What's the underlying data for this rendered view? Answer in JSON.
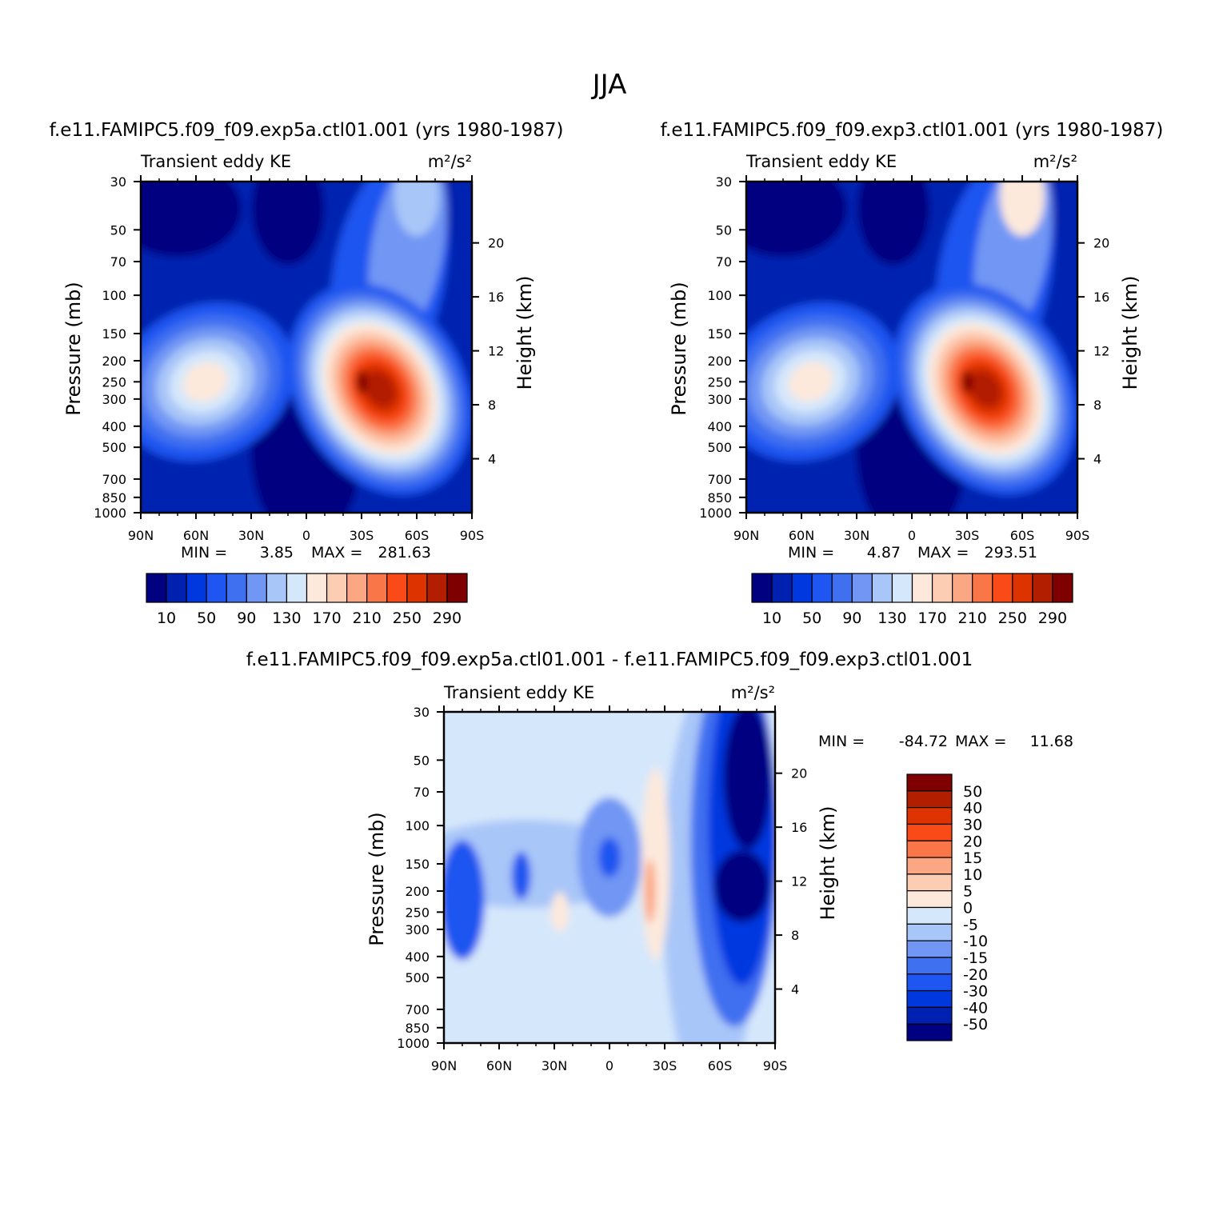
{
  "title": "JJA",
  "colors": {
    "abs": [
      "#000080",
      "#0020b0",
      "#0038e0",
      "#1f55f0",
      "#3f70f0",
      "#7196f4",
      "#a9c6f8",
      "#d5e7fb",
      "#fde9dc",
      "#fcccb3",
      "#fca784",
      "#f97648",
      "#f94a18",
      "#dd3300",
      "#b21e00",
      "#7f0000"
    ],
    "diff": [
      "#000080",
      "#0020b0",
      "#0038e0",
      "#1f55f0",
      "#3f70f0",
      "#7196f4",
      "#a9c6f8",
      "#d5e7fb",
      "#fde9dc",
      "#fcccb3",
      "#fca784",
      "#f97648",
      "#f94a18",
      "#dd3300",
      "#b21e00",
      "#7f0000"
    ]
  },
  "panels": [
    {
      "case_title": "f.e11.FAMIPC5.f09_f09.exp5a.ctl01.001 (yrs 1980-1987)",
      "variable": "Transient eddy KE",
      "units": "m²/s²",
      "min_label": "MIN =",
      "min_value": "3.85",
      "max_label": "MAX =",
      "max_value": "281.63"
    },
    {
      "case_title": "f.e11.FAMIPC5.f09_f09.exp3.ctl01.001 (yrs 1980-1987)",
      "variable": "Transient eddy KE",
      "units": "m²/s²",
      "min_label": "MIN =",
      "min_value": "4.87",
      "max_label": "MAX =",
      "max_value": "293.51"
    },
    {
      "case_title": "f.e11.FAMIPC5.f09_f09.exp5a.ctl01.001 - f.e11.FAMIPC5.f09_f09.exp3.ctl01.001",
      "variable": "Transient eddy KE",
      "units": "m²/s²",
      "min_label": "MIN =",
      "min_value": "-84.72",
      "max_label": "MAX =",
      "max_value": "11.68"
    }
  ],
  "axes": {
    "ylabel": "Pressure (mb)",
    "y2label": "Height (km)",
    "pressure_ticks": [
      "30",
      "50",
      "70",
      "100",
      "150",
      "200",
      "250",
      "300",
      "400",
      "500",
      "700",
      "850",
      "1000"
    ],
    "height_ticks": [
      "20",
      "16",
      "12",
      "8",
      "4"
    ],
    "lat_ticks": [
      "90N",
      "60N",
      "30N",
      "0",
      "30S",
      "60S",
      "90S"
    ]
  },
  "colorbar_abs_labels": [
    "10",
    "50",
    "90",
    "130",
    "170",
    "210",
    "250",
    "290"
  ],
  "colorbar_diff_labels": [
    "50",
    "40",
    "30",
    "20",
    "15",
    "10",
    "5",
    "0",
    "-5",
    "-10",
    "-15",
    "-20",
    "-30",
    "-40",
    "-50"
  ],
  "chart_data": [
    {
      "type": "heatmap",
      "title": "f.e11.FAMIPC5.f09_f09.exp5a.ctl01.001 (yrs 1980-1987)",
      "xlabel": "",
      "ylabel": "Pressure (mb)",
      "x": [
        "90N",
        "60N",
        "30N",
        "0",
        "30S",
        "60S",
        "90S"
      ],
      "ylim": [
        1000,
        30
      ],
      "y_scale": "log",
      "min": 3.85,
      "max": 281.63,
      "levels": [
        10,
        30,
        50,
        70,
        90,
        110,
        130,
        150,
        170,
        190,
        210,
        230,
        250,
        270,
        290
      ],
      "features": [
        {
          "lat": -40,
          "p": 250,
          "value": 280
        },
        {
          "lat": 58,
          "p": 250,
          "value": 170
        },
        {
          "lat": 0,
          "p": 500,
          "value": 10
        }
      ]
    },
    {
      "type": "heatmap",
      "title": "f.e11.FAMIPC5.f09_f09.exp3.ctl01.001 (yrs 1980-1987)",
      "xlabel": "",
      "ylabel": "Pressure (mb)",
      "x": [
        "90N",
        "60N",
        "30N",
        "0",
        "30S",
        "60S",
        "90S"
      ],
      "ylim": [
        1000,
        30
      ],
      "y_scale": "log",
      "min": 4.87,
      "max": 293.51,
      "levels": [
        10,
        30,
        50,
        70,
        90,
        110,
        130,
        150,
        170,
        190,
        210,
        230,
        250,
        270,
        290
      ],
      "features": [
        {
          "lat": -40,
          "p": 250,
          "value": 290
        },
        {
          "lat": 58,
          "p": 250,
          "value": 175
        },
        {
          "lat": -60,
          "p": 30,
          "value": 170
        }
      ]
    },
    {
      "type": "heatmap",
      "title": "f.e11.FAMIPC5.f09_f09.exp5a.ctl01.001 - f.e11.FAMIPC5.f09_f09.exp3.ctl01.001",
      "xlabel": "",
      "ylabel": "Pressure (mb)",
      "x": [
        "90N",
        "60N",
        "30N",
        "0",
        "30S",
        "60S",
        "90S"
      ],
      "ylim": [
        1000,
        30
      ],
      "y_scale": "log",
      "min": -84.72,
      "max": 11.68,
      "levels": [
        -50,
        -40,
        -30,
        -20,
        -15,
        -10,
        -5,
        0,
        5,
        10,
        15,
        20,
        30,
        40,
        50
      ],
      "features": [
        {
          "lat": -75,
          "p": 200,
          "value": -60
        },
        {
          "lat": -70,
          "p": 40,
          "value": -60
        },
        {
          "lat": 0,
          "p": 130,
          "value": -25
        },
        {
          "lat": 82,
          "p": 250,
          "value": -25
        },
        {
          "lat": -25,
          "p": 200,
          "value": 10
        }
      ]
    }
  ]
}
